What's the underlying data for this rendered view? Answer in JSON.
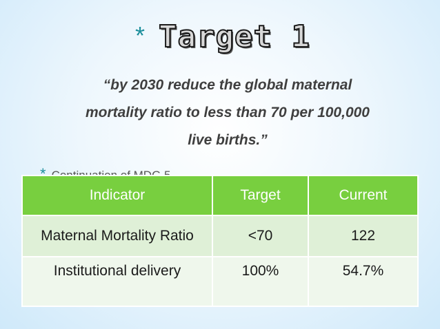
{
  "slide": {
    "title_bullet": "*",
    "title": "Target 1",
    "quote_line1": "“by 2030 reduce the global maternal",
    "quote_line2": "mortality ratio to less  than 70 per 100,000",
    "quote_line3": "live births.”",
    "bullet_symbol": "*",
    "bullet_text": "Continuation  of  MDG 5"
  },
  "table": {
    "headers": [
      "Indicator",
      "Target",
      "Current"
    ],
    "rows": [
      [
        "Maternal Mortality Ratio",
        "<70",
        "122"
      ],
      [
        "Institutional delivery",
        "100%",
        "54.7%"
      ]
    ]
  }
}
